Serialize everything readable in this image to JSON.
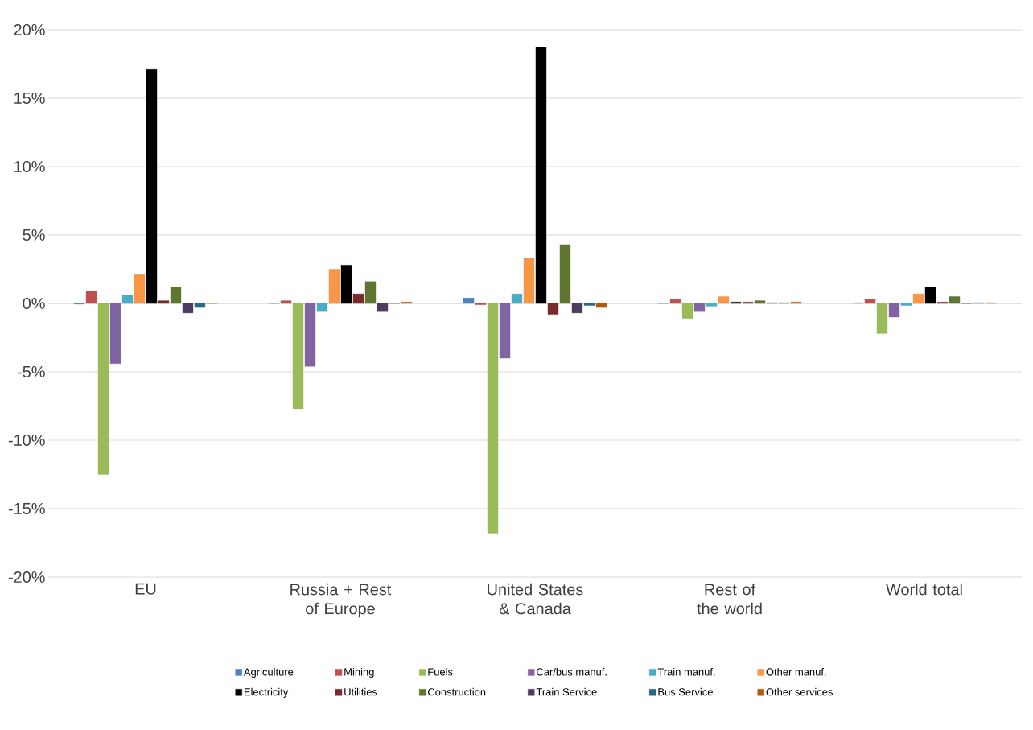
{
  "chart_data": {
    "type": "bar",
    "categories": [
      "EU",
      "Russia + Rest of Europe",
      "United States & Canada",
      "Rest of the world",
      "World total"
    ],
    "series": [
      {
        "name": "Agriculture",
        "color": "#4f81bd",
        "values": [
          -0.05,
          0,
          0.4,
          0,
          0.05
        ]
      },
      {
        "name": "Mining",
        "color": "#c0504d",
        "values": [
          0.9,
          0.2,
          -0.1,
          0.3,
          0.3
        ]
      },
      {
        "name": "Fuels",
        "color": "#9bbb59",
        "values": [
          -12.5,
          -7.7,
          -16.8,
          -1.1,
          -2.2
        ]
      },
      {
        "name": "Car/bus manuf.",
        "color": "#8064a2",
        "values": [
          -4.4,
          -4.6,
          -4.0,
          -0.6,
          -1.0
        ]
      },
      {
        "name": "Train manuf.",
        "color": "#4bacc6",
        "values": [
          0.6,
          -0.6,
          0.7,
          -0.2,
          -0.15
        ]
      },
      {
        "name": "Other manuf.",
        "color": "#f79646",
        "values": [
          2.1,
          2.5,
          3.3,
          0.5,
          0.7
        ]
      },
      {
        "name": "Electricity",
        "color": "#000000",
        "values": [
          17.1,
          2.8,
          18.7,
          0.1,
          1.2
        ]
      },
      {
        "name": "Utilities",
        "color": "#772c2a",
        "values": [
          0.2,
          0.7,
          -0.8,
          0.1,
          0.1
        ]
      },
      {
        "name": "Construction",
        "color": "#5f7530",
        "values": [
          1.2,
          1.6,
          4.3,
          0.2,
          0.5
        ]
      },
      {
        "name": "Train Service",
        "color": "#4d3b62",
        "values": [
          -0.7,
          -0.6,
          -0.7,
          0.05,
          0
        ]
      },
      {
        "name": "Bus Service",
        "color": "#276a7c",
        "values": [
          -0.3,
          0,
          -0.15,
          0.05,
          0.05
        ]
      },
      {
        "name": "Other services",
        "color": "#b65708",
        "values": [
          0,
          0.1,
          -0.3,
          0.1,
          0.05
        ]
      }
    ],
    "ylim": [
      -20,
      20
    ],
    "yticks": [
      {
        "value": -20,
        "label": "-20%"
      },
      {
        "value": -15,
        "label": "-15%"
      },
      {
        "value": -10,
        "label": "-10%"
      },
      {
        "value": -5,
        "label": "-5%"
      },
      {
        "value": 0,
        "label": "0%"
      },
      {
        "value": 5,
        "label": "5%"
      },
      {
        "value": 10,
        "label": "10%"
      },
      {
        "value": 15,
        "label": "15%"
      },
      {
        "value": 20,
        "label": "20%"
      }
    ],
    "grid": "y",
    "legend": "bottom"
  }
}
